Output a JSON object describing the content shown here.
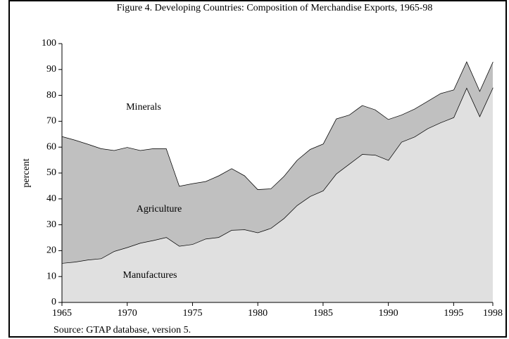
{
  "chart_data": {
    "type": "stacked_area",
    "title": "Figure 4. Developing Countries: Composition of Merchandise Exports, 1965-98",
    "note": "Source: GTAP database, version 5.",
    "ylabel": "percent",
    "x": [
      1965,
      1966,
      1967,
      1968,
      1969,
      1970,
      1971,
      1972,
      1973,
      1974,
      1975,
      1976,
      1977,
      1978,
      1979,
      1980,
      1981,
      1982,
      1983,
      1984,
      1985,
      1986,
      1987,
      1988,
      1989,
      1990,
      1991,
      1992,
      1993,
      1994,
      1995,
      1996,
      1997,
      1998
    ],
    "series": [
      {
        "name": "Manufactures",
        "color": "#e0e0e0",
        "values": [
          15.2,
          15.7,
          16.5,
          17,
          19.8,
          21.3,
          23,
          24,
          25.2,
          21.8,
          22.5,
          24.6,
          25.2,
          28,
          28.2,
          27,
          28.7,
          32.5,
          37.5,
          41,
          43.2,
          49.7,
          53.5,
          57.3,
          57,
          55,
          62,
          64,
          67.2,
          69.5,
          71.5,
          83,
          72,
          83
        ]
      },
      {
        "name": "Agriculture",
        "color": "#c0c0c0",
        "values": [
          49,
          47.1,
          44.7,
          42.5,
          39,
          38.7,
          35.8,
          35.5,
          34.3,
          23.2,
          23.5,
          22.2,
          23.8,
          23.8,
          20.8,
          16.7,
          15.3,
          16.3,
          17.5,
          18.2,
          18.1,
          21.3,
          19,
          18.9,
          17.5,
          15.8,
          10.5,
          10.8,
          10.6,
          11.3,
          10.7,
          10.2,
          9.8,
          10
        ]
      },
      {
        "name": "Minerals",
        "color": "#ffffff",
        "values": [
          35.8,
          37.2,
          38.8,
          40.5,
          41.2,
          40,
          41.2,
          40.5,
          40.5,
          55,
          54,
          53.2,
          51,
          48.2,
          51,
          56.3,
          56,
          51.2,
          45,
          40.8,
          38.7,
          29,
          27.5,
          23.8,
          25.5,
          29.2,
          27.5,
          25.2,
          22.2,
          19.2,
          17.8,
          6.8,
          18.2,
          7
        ]
      }
    ],
    "xlim": [
      1965,
      1998
    ],
    "xticks": [
      1965,
      1970,
      1975,
      1980,
      1985,
      1990,
      1995,
      1998
    ],
    "ylim": [
      0,
      100
    ],
    "yticks": [
      0,
      10,
      20,
      30,
      40,
      50,
      60,
      70,
      80,
      90,
      100
    ]
  }
}
